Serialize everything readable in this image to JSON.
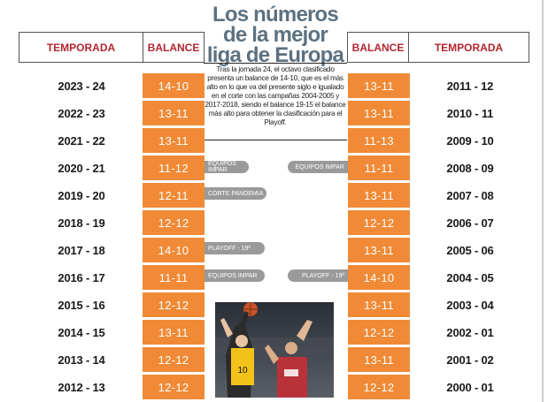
{
  "title": {
    "line1": "Los números",
    "line2": "de la mejor",
    "line3": "liga de Europa"
  },
  "intro": "Tras la jornada 24, el octavo clasificado presenta un balance de 14-10, que es el más alto en lo que va del presente siglo e igualado en el corte con las campañas 2004-2005 y 2017-2018, siendo el balance 19-15 el balance más alto para obtener la clasificación para el Playoff.",
  "headers": {
    "season": "TEMPORADA",
    "balance": "BALANCE"
  },
  "left_rows": [
    {
      "season": "2023 - 24",
      "balance": "14-10"
    },
    {
      "season": "2022 - 23",
      "balance": "13-11"
    },
    {
      "season": "2021 - 22",
      "balance": "13-11"
    },
    {
      "season": "2020 - 21",
      "balance": "11-12"
    },
    {
      "season": "2019 - 20",
      "balance": "12-11"
    },
    {
      "season": "2018 - 19",
      "balance": "12-12"
    },
    {
      "season": "2017 - 18",
      "balance": "14-10"
    },
    {
      "season": "2016 - 17",
      "balance": "11-11"
    },
    {
      "season": "2015 - 16",
      "balance": "12-12"
    },
    {
      "season": "2014 - 15",
      "balance": "13-11"
    },
    {
      "season": "2013 - 14",
      "balance": "12-12"
    },
    {
      "season": "2012 - 13",
      "balance": "12-12"
    }
  ],
  "right_rows": [
    {
      "season": "2011 - 12",
      "balance": "13-11"
    },
    {
      "season": "2010 - 11",
      "balance": "13-11"
    },
    {
      "season": "2009 - 10",
      "balance": "11-13"
    },
    {
      "season": "2008 - 09",
      "balance": "11-11"
    },
    {
      "season": "2007 - 08",
      "balance": "13-11"
    },
    {
      "season": "2006 - 07",
      "balance": "12-12"
    },
    {
      "season": "2005 - 06",
      "balance": "13-11"
    },
    {
      "season": "2004 - 05",
      "balance": "14-10"
    },
    {
      "season": "2003 - 04",
      "balance": "13-11"
    },
    {
      "season": "2002 - 01",
      "balance": "12-12"
    },
    {
      "season": "2001 - 02",
      "balance": "13-11"
    },
    {
      "season": "2000 - 01",
      "balance": "12-12"
    }
  ],
  "tags": {
    "equipos_impar_1": "EQUIPOS IMPAR",
    "equipos_impar_2": "EQUIPOS IMPAR",
    "corte_pandemia": "CORTE PANDEMIA",
    "playoff_left": "PLAYOFF - 19º",
    "equipos_impar_3": "EQUIPOS IMPAR",
    "playoff_right": "PLAYOFF - 19º"
  },
  "colors": {
    "balance_fill": "#f08a36",
    "header_text": "#b02630",
    "title": "#5d7180",
    "tag_fill": "#9a9a9a"
  }
}
